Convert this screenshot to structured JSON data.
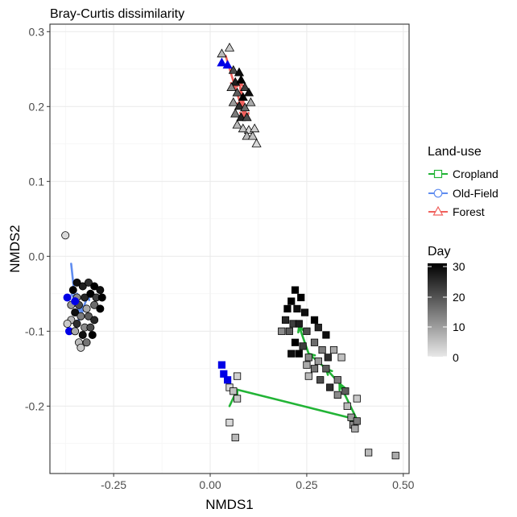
{
  "chart_data": {
    "type": "scatter",
    "title": "Bray-Curtis dissimilarity",
    "xlabel": "NMDS1",
    "ylabel": "NMDS2",
    "xlim": [
      -0.415,
      0.515
    ],
    "ylim": [
      -0.29,
      0.31
    ],
    "xticks": [
      -0.25,
      0.0,
      0.25,
      0.5
    ],
    "xtick_labels": [
      "-0.25",
      "0.00",
      "0.25",
      "0.50"
    ],
    "yticks": [
      -0.2,
      -0.1,
      0.0,
      0.1,
      0.2,
      0.3
    ],
    "ytick_labels": [
      "-0.2",
      "-0.1",
      "0.0",
      "0.1",
      "0.2",
      "0.3"
    ],
    "grid": true,
    "legend_position": "right",
    "colors": {
      "Cropland": "#22b436",
      "Old-Field": "#5f8cf0",
      "Forest": "#f0605c",
      "day0_marker": "#0000e6"
    },
    "legends": {
      "landuse_title": "Land-use",
      "landuse_items": [
        {
          "label": "Cropland",
          "shape": "square",
          "color": "#22b436"
        },
        {
          "label": "Old-Field",
          "shape": "circle",
          "color": "#5f8cf0"
        },
        {
          "label": "Forest",
          "shape": "triangle",
          "color": "#f0605c"
        }
      ],
      "day_title": "Day",
      "day_ticks": [
        "0",
        "10",
        "20",
        "30"
      ],
      "day_range": [
        0,
        30
      ]
    },
    "series": [
      {
        "name": "Cropland",
        "shape": "square",
        "points": [
          {
            "x": 0.22,
            "y": -0.045,
            "day": 30
          },
          {
            "x": 0.21,
            "y": -0.06,
            "day": 30
          },
          {
            "x": 0.235,
            "y": -0.055,
            "day": 30
          },
          {
            "x": 0.2,
            "y": -0.07,
            "day": 30
          },
          {
            "x": 0.225,
            "y": -0.07,
            "day": 28
          },
          {
            "x": 0.245,
            "y": -0.075,
            "day": 28
          },
          {
            "x": 0.195,
            "y": -0.085,
            "day": 25
          },
          {
            "x": 0.215,
            "y": -0.09,
            "day": 22
          },
          {
            "x": 0.23,
            "y": -0.09,
            "day": 26
          },
          {
            "x": 0.27,
            "y": -0.085,
            "day": 30
          },
          {
            "x": 0.28,
            "y": -0.095,
            "day": 25
          },
          {
            "x": 0.185,
            "y": -0.1,
            "day": 12
          },
          {
            "x": 0.205,
            "y": -0.1,
            "day": 18
          },
          {
            "x": 0.25,
            "y": -0.1,
            "day": 20
          },
          {
            "x": 0.3,
            "y": -0.105,
            "day": 28
          },
          {
            "x": 0.22,
            "y": -0.115,
            "day": 30
          },
          {
            "x": 0.24,
            "y": -0.12,
            "day": 22
          },
          {
            "x": 0.27,
            "y": -0.115,
            "day": 16
          },
          {
            "x": 0.29,
            "y": -0.125,
            "day": 14
          },
          {
            "x": 0.32,
            "y": -0.125,
            "day": 8
          },
          {
            "x": 0.21,
            "y": -0.13,
            "day": 28
          },
          {
            "x": 0.23,
            "y": -0.13,
            "day": 30
          },
          {
            "x": 0.255,
            "y": -0.135,
            "day": 12
          },
          {
            "x": 0.28,
            "y": -0.14,
            "day": 10
          },
          {
            "x": 0.305,
            "y": -0.135,
            "day": 24
          },
          {
            "x": 0.34,
            "y": -0.135,
            "day": 5
          },
          {
            "x": 0.25,
            "y": -0.145,
            "day": 8
          },
          {
            "x": 0.27,
            "y": -0.15,
            "day": 15
          },
          {
            "x": 0.3,
            "y": -0.15,
            "day": 18
          },
          {
            "x": 0.255,
            "y": -0.16,
            "day": 6
          },
          {
            "x": 0.285,
            "y": -0.165,
            "day": 20
          },
          {
            "x": 0.33,
            "y": -0.165,
            "day": 14
          },
          {
            "x": 0.31,
            "y": -0.175,
            "day": 24
          },
          {
            "x": 0.35,
            "y": -0.18,
            "day": 18
          },
          {
            "x": 0.33,
            "y": -0.185,
            "day": 12
          },
          {
            "x": 0.38,
            "y": -0.19,
            "day": 4
          },
          {
            "x": 0.355,
            "y": -0.2,
            "day": 6
          },
          {
            "x": 0.365,
            "y": -0.215,
            "day": 10
          },
          {
            "x": 0.37,
            "y": -0.225,
            "day": 12
          },
          {
            "x": 0.375,
            "y": -0.23,
            "day": 8
          },
          {
            "x": 0.38,
            "y": -0.22,
            "day": 14
          },
          {
            "x": 0.41,
            "y": -0.262,
            "day": 6
          },
          {
            "x": 0.48,
            "y": -0.266,
            "day": 8
          },
          {
            "x": 0.03,
            "y": -0.145,
            "day": 0
          },
          {
            "x": 0.035,
            "y": -0.157,
            "day": 0
          },
          {
            "x": 0.045,
            "y": -0.165,
            "day": 0
          },
          {
            "x": 0.07,
            "y": -0.16,
            "day": 3
          },
          {
            "x": 0.05,
            "y": -0.175,
            "day": 2
          },
          {
            "x": 0.06,
            "y": -0.18,
            "day": 5
          },
          {
            "x": 0.07,
            "y": -0.19,
            "day": 4
          },
          {
            "x": 0.05,
            "y": -0.222,
            "day": 2
          },
          {
            "x": 0.065,
            "y": -0.242,
            "day": 6
          }
        ],
        "trajectory": [
          {
            "x": 0.05,
            "y": -0.2
          },
          {
            "x": 0.07,
            "y": -0.178
          },
          {
            "x": 0.38,
            "y": -0.218
          },
          {
            "x": 0.335,
            "y": -0.17
          },
          {
            "x": 0.3,
            "y": -0.15
          },
          {
            "x": 0.255,
            "y": -0.13
          },
          {
            "x": 0.23,
            "y": -0.093
          }
        ]
      },
      {
        "name": "Old-Field",
        "shape": "circle",
        "points": [
          {
            "x": -0.375,
            "y": 0.028,
            "day": 2
          },
          {
            "x": -0.37,
            "y": -0.055,
            "day": 0
          },
          {
            "x": -0.355,
            "y": -0.045,
            "day": 30
          },
          {
            "x": -0.345,
            "y": -0.035,
            "day": 28
          },
          {
            "x": -0.33,
            "y": -0.04,
            "day": 26
          },
          {
            "x": -0.315,
            "y": -0.035,
            "day": 24
          },
          {
            "x": -0.3,
            "y": -0.04,
            "day": 30
          },
          {
            "x": -0.285,
            "y": -0.045,
            "day": 28
          },
          {
            "x": -0.345,
            "y": -0.055,
            "day": 12
          },
          {
            "x": -0.325,
            "y": -0.055,
            "day": 25
          },
          {
            "x": -0.31,
            "y": -0.05,
            "day": 30
          },
          {
            "x": -0.295,
            "y": -0.055,
            "day": 22
          },
          {
            "x": -0.28,
            "y": -0.055,
            "day": 30
          },
          {
            "x": -0.36,
            "y": -0.065,
            "day": 10
          },
          {
            "x": -0.34,
            "y": -0.065,
            "day": 20
          },
          {
            "x": -0.32,
            "y": -0.07,
            "day": 8
          },
          {
            "x": -0.3,
            "y": -0.065,
            "day": 16
          },
          {
            "x": -0.285,
            "y": -0.07,
            "day": 30
          },
          {
            "x": -0.35,
            "y": -0.075,
            "day": 28
          },
          {
            "x": -0.335,
            "y": -0.08,
            "day": 14
          },
          {
            "x": -0.315,
            "y": -0.08,
            "day": 18
          },
          {
            "x": -0.3,
            "y": -0.085,
            "day": 25
          },
          {
            "x": -0.36,
            "y": -0.085,
            "day": 6
          },
          {
            "x": -0.345,
            "y": -0.09,
            "day": 24
          },
          {
            "x": -0.325,
            "y": -0.095,
            "day": 12
          },
          {
            "x": -0.31,
            "y": -0.095,
            "day": 20
          },
          {
            "x": -0.37,
            "y": -0.09,
            "day": 4
          },
          {
            "x": -0.365,
            "y": -0.1,
            "day": 0
          },
          {
            "x": -0.35,
            "y": -0.1,
            "day": 8
          },
          {
            "x": -0.33,
            "y": -0.105,
            "day": 28
          },
          {
            "x": -0.305,
            "y": -0.105,
            "day": 30
          },
          {
            "x": -0.34,
            "y": -0.115,
            "day": 6
          },
          {
            "x": -0.32,
            "y": -0.115,
            "day": 15
          },
          {
            "x": -0.335,
            "y": -0.122,
            "day": 4
          },
          {
            "x": -0.35,
            "y": -0.06,
            "day": 0
          }
        ],
        "trajectory": [
          {
            "x": -0.36,
            "y": -0.01
          },
          {
            "x": -0.35,
            "y": -0.058
          },
          {
            "x": -0.335,
            "y": -0.08
          },
          {
            "x": -0.325,
            "y": -0.065
          },
          {
            "x": -0.34,
            "y": -0.085
          },
          {
            "x": -0.315,
            "y": -0.05
          }
        ]
      },
      {
        "name": "Forest",
        "shape": "triangle",
        "points": [
          {
            "x": 0.05,
            "y": 0.278,
            "day": 4
          },
          {
            "x": 0.03,
            "y": 0.27,
            "day": 6
          },
          {
            "x": 0.03,
            "y": 0.258,
            "day": 0
          },
          {
            "x": 0.045,
            "y": 0.255,
            "day": 0
          },
          {
            "x": 0.06,
            "y": 0.248,
            "day": 20
          },
          {
            "x": 0.075,
            "y": 0.245,
            "day": 28
          },
          {
            "x": 0.065,
            "y": 0.232,
            "day": 26
          },
          {
            "x": 0.08,
            "y": 0.235,
            "day": 30
          },
          {
            "x": 0.09,
            "y": 0.225,
            "day": 22
          },
          {
            "x": 0.055,
            "y": 0.225,
            "day": 12
          },
          {
            "x": 0.07,
            "y": 0.218,
            "day": 18
          },
          {
            "x": 0.085,
            "y": 0.212,
            "day": 30
          },
          {
            "x": 0.1,
            "y": 0.218,
            "day": 28
          },
          {
            "x": 0.06,
            "y": 0.205,
            "day": 10
          },
          {
            "x": 0.075,
            "y": 0.2,
            "day": 24
          },
          {
            "x": 0.09,
            "y": 0.198,
            "day": 16
          },
          {
            "x": 0.105,
            "y": 0.205,
            "day": 8
          },
          {
            "x": 0.065,
            "y": 0.19,
            "day": 14
          },
          {
            "x": 0.08,
            "y": 0.185,
            "day": 25
          },
          {
            "x": 0.095,
            "y": 0.185,
            "day": 20
          },
          {
            "x": 0.07,
            "y": 0.175,
            "day": 6
          },
          {
            "x": 0.085,
            "y": 0.17,
            "day": 4
          },
          {
            "x": 0.1,
            "y": 0.168,
            "day": 2
          },
          {
            "x": 0.115,
            "y": 0.17,
            "day": 3
          },
          {
            "x": 0.095,
            "y": 0.16,
            "day": 6
          },
          {
            "x": 0.11,
            "y": 0.16,
            "day": 5
          },
          {
            "x": 0.12,
            "y": 0.15,
            "day": 2
          }
        ],
        "trajectory": [
          {
            "x": 0.04,
            "y": 0.268
          },
          {
            "x": 0.065,
            "y": 0.225
          },
          {
            "x": 0.082,
            "y": 0.198
          },
          {
            "x": 0.088,
            "y": 0.185
          },
          {
            "x": 0.075,
            "y": 0.235
          },
          {
            "x": 0.095,
            "y": 0.183
          }
        ]
      }
    ]
  }
}
